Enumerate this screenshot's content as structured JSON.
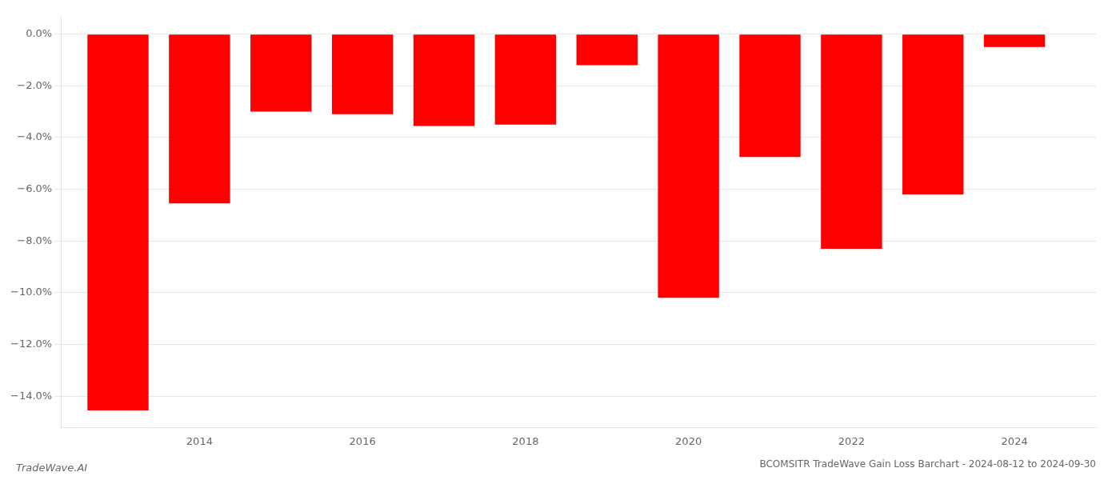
{
  "chart_data": {
    "type": "bar",
    "title": "BCOMSITR TradeWave Gain Loss Barchart - 2024-08-12 to 2024-09-30",
    "annotations": [
      "TradeWave.AI"
    ],
    "x": [
      2013,
      2014,
      2015,
      2016,
      2017,
      2018,
      2019,
      2020,
      2021,
      2022,
      2023,
      2024
    ],
    "values": [
      -14.55,
      -6.55,
      -3.0,
      -3.1,
      -3.55,
      -3.5,
      -1.2,
      -10.2,
      -4.75,
      -8.3,
      -6.2,
      -0.5
    ],
    "color": "#ff0000",
    "xlim": [
      2012.3,
      2025.0
    ],
    "xticks": [
      2014,
      2016,
      2018,
      2020,
      2022,
      2024
    ],
    "ylim": [
      -15.2,
      0.7
    ],
    "yticks": [
      {
        "value": 0.0,
        "label": "0.0%"
      },
      {
        "value": -2.0,
        "label": "−2.0%"
      },
      {
        "value": -4.0,
        "label": "−4.0%"
      },
      {
        "value": -6.0,
        "label": "−6.0%"
      },
      {
        "value": -8.0,
        "label": "−8.0%"
      },
      {
        "value": -10.0,
        "label": "−10.0%"
      },
      {
        "value": -12.0,
        "label": "−12.0%"
      },
      {
        "value": -14.0,
        "label": "−14.0%"
      }
    ],
    "grid": "y"
  }
}
